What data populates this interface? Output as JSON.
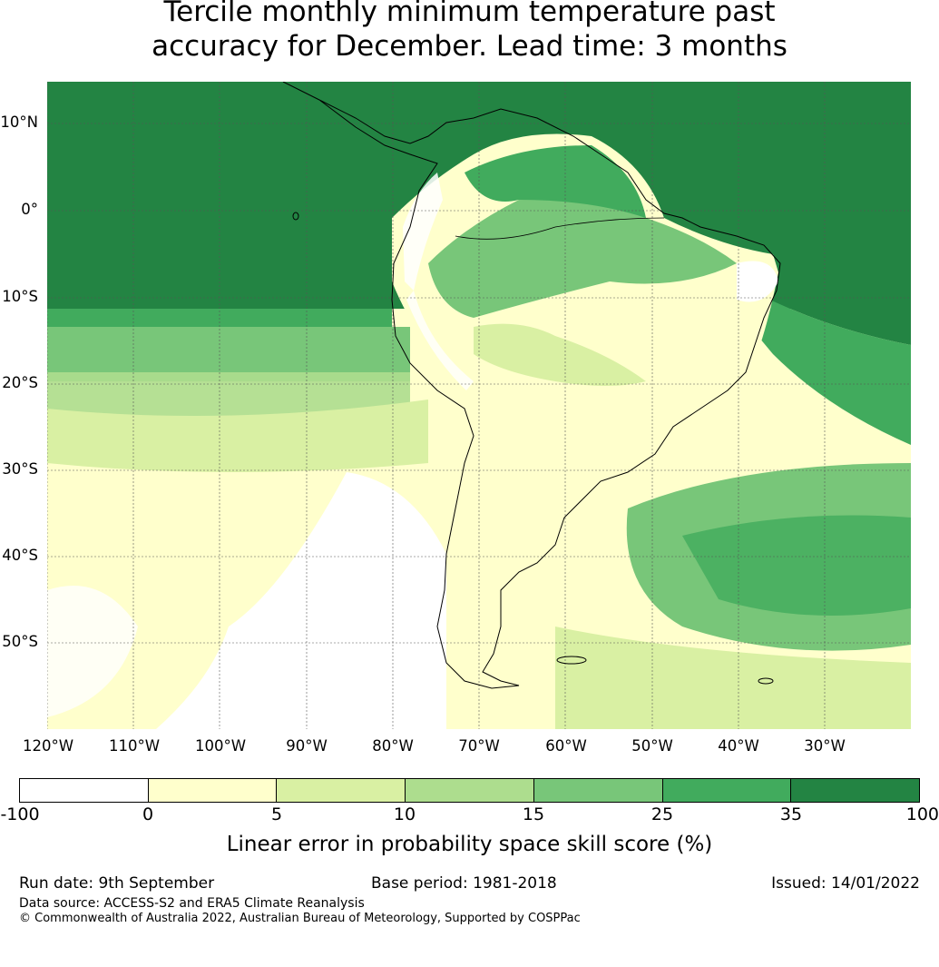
{
  "title": {
    "line1": "Tercile monthly minimum temperature past",
    "line2": "accuracy for December. Lead time: 3 months"
  },
  "map": {
    "lat_labels": [
      "10°N",
      "0°",
      "10°S",
      "20°S",
      "30°S",
      "40°S",
      "50°S"
    ],
    "lon_labels": [
      "120°W",
      "110°W",
      "100°W",
      "90°W",
      "80°W",
      "70°W",
      "60°W",
      "50°W",
      "40°W",
      "30°W"
    ],
    "colors": {
      "ocean_deep": "#238443",
      "ocean_mid": "#41ab5d",
      "mid": "#78c679",
      "light": "#addd8e",
      "pale": "#d9f0a3",
      "cream": "#ffffcc",
      "white": "#ffffff",
      "coast": "#000000"
    }
  },
  "colorbar": {
    "ticks": [
      "-100",
      "0",
      "5",
      "10",
      "15",
      "25",
      "35",
      "100"
    ],
    "colors": [
      "#ffffff",
      "#ffffcc",
      "#d9f0a3",
      "#addd8e",
      "#78c679",
      "#41ab5d",
      "#238443"
    ],
    "label": "Linear error in probability space skill score (%)"
  },
  "footer": {
    "run_date": "Run date: 9th September",
    "base_period": "Base period: 1981-2018",
    "issued": "Issued: 14/01/2022",
    "data_source": "Data source: ACCESS-S2 and ERA5 Climate Reanalysis",
    "copyright": "© Commonwealth of Australia 2022, Australian Bureau of Meteorology, Supported by COSPPac"
  }
}
